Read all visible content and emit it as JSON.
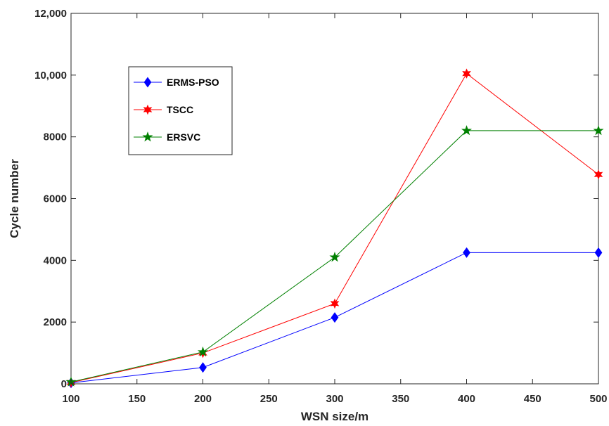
{
  "chart_data": {
    "type": "line",
    "xlabel": "WSN size/m",
    "ylabel": "Cycle number",
    "xlim": [
      100,
      500
    ],
    "ylim": [
      0,
      12000
    ],
    "x_ticks": [
      "100",
      "150",
      "200",
      "250",
      "300",
      "350",
      "400",
      "450",
      "500"
    ],
    "y_ticks": [
      "0",
      "2000",
      "4000",
      "6000",
      "8000",
      "10,000",
      "12,000"
    ],
    "grid": false,
    "legend_position": "upper-left",
    "x": [
      100,
      200,
      300,
      400,
      500
    ],
    "series": [
      {
        "name": "ERMS-PSO",
        "color": "#0000ff",
        "marker": "diamond",
        "values": [
          30,
          530,
          2150,
          4250,
          4250
        ]
      },
      {
        "name": "TSCC",
        "color": "#ff0000",
        "marker": "hexagram",
        "values": [
          40,
          1000,
          2600,
          10050,
          6780
        ]
      },
      {
        "name": "ERSVC",
        "color": "#008000",
        "marker": "pentagram",
        "values": [
          60,
          1030,
          4100,
          8200,
          8200
        ]
      }
    ]
  }
}
